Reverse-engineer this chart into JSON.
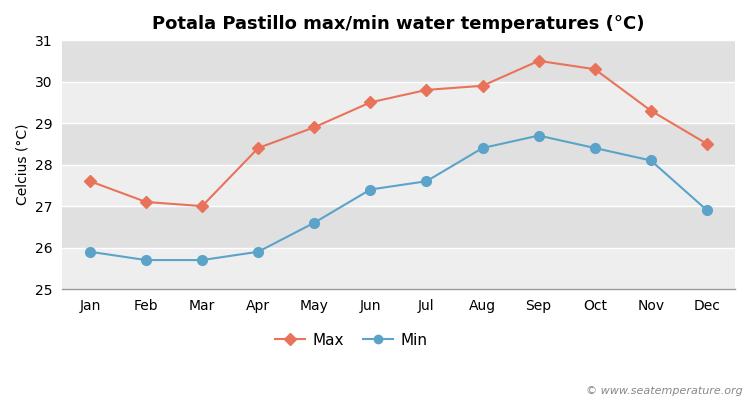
{
  "months": [
    "Jan",
    "Feb",
    "Mar",
    "Apr",
    "May",
    "Jun",
    "Jul",
    "Aug",
    "Sep",
    "Oct",
    "Nov",
    "Dec"
  ],
  "max_temps": [
    27.6,
    27.1,
    27.0,
    28.4,
    28.9,
    29.5,
    29.8,
    29.9,
    30.5,
    30.3,
    29.3,
    28.5
  ],
  "min_temps": [
    25.9,
    25.7,
    25.7,
    25.9,
    26.6,
    27.4,
    27.6,
    28.4,
    28.7,
    28.4,
    28.1,
    26.9
  ],
  "max_color": "#e8735a",
  "min_color": "#5ba3c9",
  "title": "Potala Pastillo max/min water temperatures (°C)",
  "ylabel": "Celcius (°C)",
  "ylim": [
    25.0,
    31.0
  ],
  "yticks": [
    25,
    26,
    27,
    28,
    29,
    30,
    31
  ],
  "fig_bg_color": "#ffffff",
  "plot_bg_color": "#e8e8e8",
  "band_color_light": "#eeeeee",
  "band_color_dark": "#e0e0e0",
  "grid_color": "#ffffff",
  "watermark": "© www.seatemperature.org",
  "title_fontsize": 13,
  "label_fontsize": 10,
  "tick_fontsize": 10,
  "watermark_fontsize": 8
}
